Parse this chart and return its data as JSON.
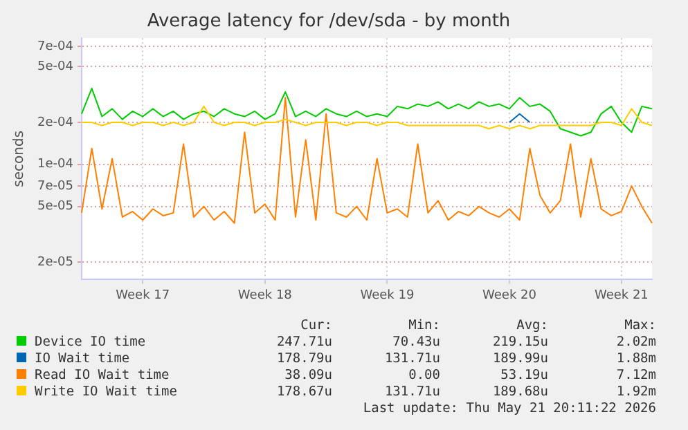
{
  "chart_data": {
    "type": "line",
    "title": "Average latency for /dev/sda - by month",
    "ylabel": "seconds",
    "log": "y",
    "grid": true,
    "legend": "bottom",
    "categories": [
      null,
      null,
      null,
      null,
      null,
      null,
      "Week 17",
      null,
      null,
      null,
      null,
      null,
      null,
      null,
      null,
      null,
      null,
      null,
      "Week 18",
      null,
      null,
      null,
      null,
      null,
      null,
      null,
      null,
      null,
      null,
      null,
      "Week 19",
      null,
      null,
      null,
      null,
      null,
      null,
      null,
      null,
      null,
      null,
      null,
      "Week 20",
      null,
      null,
      null,
      null,
      null,
      null,
      null,
      null,
      null,
      null,
      "Week 21",
      null,
      null,
      null
    ],
    "ylim": [
      1.5e-05,
      0.0008
    ],
    "yticks": [
      {
        "value": 2e-05,
        "label": "2e-05"
      },
      {
        "value": 5e-05,
        "label": "5e-05"
      },
      {
        "value": 7e-05,
        "label": "7e-05"
      },
      {
        "value": 0.0001,
        "label": "1e-04"
      },
      {
        "value": 0.0002,
        "label": "2e-04"
      },
      {
        "value": 0.0005,
        "label": "5e-04"
      },
      {
        "value": 0.0007,
        "label": "7e-04"
      }
    ],
    "series": [
      {
        "name": "Device IO time",
        "color": "#00cc00",
        "values": [
          0.00023,
          0.00035,
          0.00022,
          0.00025,
          0.00021,
          0.00024,
          0.00022,
          0.00025,
          0.00022,
          0.00024,
          0.00021,
          0.00023,
          0.00024,
          0.00022,
          0.00025,
          0.00023,
          0.00022,
          0.00024,
          0.00021,
          0.00023,
          0.00033,
          0.00022,
          0.00024,
          0.00022,
          0.00025,
          0.00023,
          0.00022,
          0.00024,
          0.00022,
          0.00023,
          0.00022,
          0.00026,
          0.00025,
          0.00027,
          0.00026,
          0.00028,
          0.00025,
          0.00027,
          0.00025,
          0.00028,
          0.00026,
          0.00027,
          0.00025,
          0.0003,
          0.00026,
          0.00027,
          0.00024,
          0.00018,
          0.00017,
          0.00016,
          0.00017,
          0.00023,
          0.00026,
          0.0002,
          0.00017,
          0.00026,
          0.00025
        ]
      },
      {
        "name": "IO Wait time",
        "color": "#0066b3",
        "values": [
          null,
          null,
          null,
          null,
          null,
          null,
          null,
          null,
          null,
          null,
          null,
          null,
          null,
          null,
          null,
          null,
          null,
          null,
          null,
          null,
          null,
          null,
          null,
          null,
          null,
          null,
          null,
          null,
          null,
          null,
          null,
          null,
          null,
          null,
          null,
          null,
          null,
          null,
          null,
          null,
          null,
          null,
          0.0002,
          0.00023,
          0.0002,
          null,
          null,
          null,
          null,
          null,
          null,
          null,
          null,
          null,
          null,
          null,
          null
        ]
      },
      {
        "name": "Read IO Wait time",
        "color": "#ff8000",
        "values": [
          4.5e-05,
          0.00013,
          4.8e-05,
          0.00011,
          4.2e-05,
          4.6e-05,
          4e-05,
          4.8e-05,
          4.3e-05,
          4.5e-05,
          0.00014,
          4.2e-05,
          5e-05,
          4e-05,
          4.6e-05,
          3.8e-05,
          0.00017,
          4.5e-05,
          5.2e-05,
          4e-05,
          0.0003,
          4.2e-05,
          0.00015,
          4e-05,
          0.00023,
          4.5e-05,
          4.2e-05,
          5e-05,
          4e-05,
          0.00011,
          4.5e-05,
          4.8e-05,
          4.2e-05,
          0.00014,
          4.5e-05,
          5.5e-05,
          4e-05,
          4.6e-05,
          4.3e-05,
          5e-05,
          4.5e-05,
          4.2e-05,
          4.8e-05,
          4e-05,
          0.00013,
          6e-05,
          4.5e-05,
          5.5e-05,
          0.00014,
          4.2e-05,
          0.00011,
          4.8e-05,
          4.3e-05,
          4.6e-05,
          7e-05,
          5e-05,
          3.8e-05
        ]
      },
      {
        "name": "Write IO Wait time",
        "color": "#ffcc00",
        "values": [
          0.0002,
          0.0002,
          0.00019,
          0.0002,
          0.0002,
          0.00019,
          0.0002,
          0.0002,
          0.00019,
          0.0002,
          0.00019,
          0.0002,
          0.00026,
          0.0002,
          0.00019,
          0.0002,
          0.0002,
          0.00019,
          0.0002,
          0.0002,
          0.00021,
          0.0002,
          0.00019,
          0.0002,
          0.0002,
          0.0002,
          0.00019,
          0.0002,
          0.0002,
          0.00019,
          0.0002,
          0.0002,
          0.00019,
          0.00019,
          0.00019,
          0.00019,
          0.00019,
          0.00019,
          0.00019,
          0.00019,
          0.00018,
          0.00019,
          0.00018,
          0.00019,
          0.00018,
          0.00019,
          0.00019,
          0.00019,
          0.00019,
          0.00019,
          0.00019,
          0.0002,
          0.0002,
          0.00019,
          0.00025,
          0.0002,
          0.00019
        ]
      }
    ],
    "annotations": [
      "Cur:",
      "Min:",
      "Avg:",
      "Max:",
      "247.71u",
      "70.43u",
      "219.15u",
      "2.02m",
      "178.79u",
      "131.71u",
      "189.99u",
      "1.88m",
      "38.09u",
      "0.00",
      "53.19u",
      "7.12m",
      "178.67u",
      "131.71u",
      "189.68u",
      "1.92m",
      "Last update: Thu May 21 20:11:22 2026"
    ]
  }
}
